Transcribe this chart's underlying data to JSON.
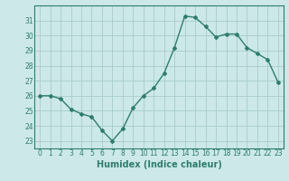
{
  "x": [
    0,
    1,
    2,
    3,
    4,
    5,
    6,
    7,
    8,
    9,
    10,
    11,
    12,
    13,
    14,
    15,
    16,
    17,
    18,
    19,
    20,
    21,
    22,
    23
  ],
  "y": [
    26.0,
    26.0,
    25.8,
    25.1,
    24.8,
    24.6,
    23.7,
    23.0,
    23.8,
    25.2,
    26.0,
    26.5,
    27.5,
    29.2,
    31.3,
    31.2,
    30.6,
    29.9,
    30.1,
    30.1,
    29.2,
    28.8,
    28.4,
    26.9
  ],
  "xlabel": "Humidex (Indice chaleur)",
  "ylim": [
    22.5,
    32.0
  ],
  "xlim": [
    -0.5,
    23.5
  ],
  "yticks": [
    23,
    24,
    25,
    26,
    27,
    28,
    29,
    30,
    31
  ],
  "xticks": [
    0,
    1,
    2,
    3,
    4,
    5,
    6,
    7,
    8,
    9,
    10,
    11,
    12,
    13,
    14,
    15,
    16,
    17,
    18,
    19,
    20,
    21,
    22,
    23
  ],
  "line_color": "#2e7d6e",
  "marker": "D",
  "marker_size": 2.0,
  "bg_color": "#cce8e8",
  "grid_color": "#a8cccc",
  "line_width": 1.0,
  "tick_fontsize": 5.5,
  "xlabel_fontsize": 7.0
}
